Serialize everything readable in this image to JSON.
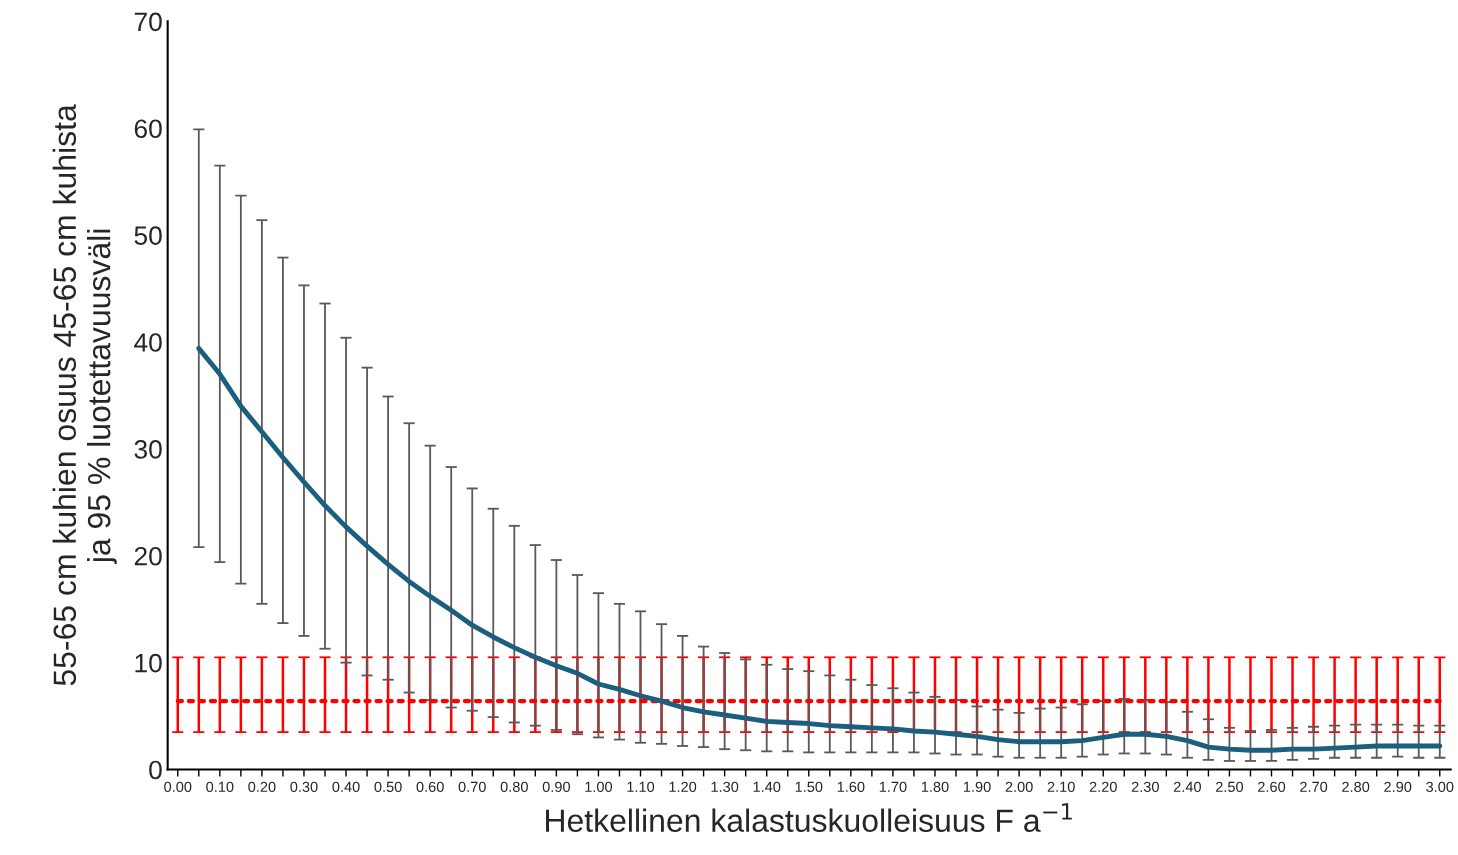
{
  "chart_data": {
    "type": "line",
    "xlabel": "Hetkellinen kalastuskuolleisuus F a$^{−1}$",
    "ylabel": "55-65 cm kuhien osuus 45-65 cm kuhista\nja 95 % luotettavuusväli",
    "xlim": [
      -0.024,
      3.026
    ],
    "ylim": [
      0,
      70
    ],
    "yticks": [
      0,
      10,
      20,
      30,
      40,
      50,
      60,
      70
    ],
    "xticks": [
      {
        "value": 0,
        "label": "0.00"
      },
      {
        "value": 0.05,
        "label": null
      },
      {
        "value": 0.1,
        "label": "0.10"
      },
      {
        "value": 0.15,
        "label": null
      },
      {
        "value": 0.2,
        "label": "0.20"
      },
      {
        "value": 0.25,
        "label": null
      },
      {
        "value": 0.3,
        "label": "0.30"
      },
      {
        "value": 0.35,
        "label": null
      },
      {
        "value": 0.4,
        "label": "0.40"
      },
      {
        "value": 0.45,
        "label": null
      },
      {
        "value": 0.5,
        "label": "0.50"
      },
      {
        "value": 0.55,
        "label": null
      },
      {
        "value": 0.6,
        "label": "0.60"
      },
      {
        "value": 0.65,
        "label": null
      },
      {
        "value": 0.7,
        "label": "0.70"
      },
      {
        "value": 0.75,
        "label": null
      },
      {
        "value": 0.8,
        "label": "0.80"
      },
      {
        "value": 0.85,
        "label": null
      },
      {
        "value": 0.9,
        "label": "0.90"
      },
      {
        "value": 0.95,
        "label": null
      },
      {
        "value": 1.0,
        "label": "1.00"
      },
      {
        "value": 1.05,
        "label": null
      },
      {
        "value": 1.1,
        "label": "1.10"
      },
      {
        "value": 1.15,
        "label": null
      },
      {
        "value": 1.2,
        "label": "1.20"
      },
      {
        "value": 1.25,
        "label": null
      },
      {
        "value": 1.3,
        "label": "1.30"
      },
      {
        "value": 1.35,
        "label": null
      },
      {
        "value": 1.4,
        "label": "1.40"
      },
      {
        "value": 1.45,
        "label": null
      },
      {
        "value": 1.5,
        "label": "1.50"
      },
      {
        "value": 1.55,
        "label": null
      },
      {
        "value": 1.6,
        "label": "1.60"
      },
      {
        "value": 1.65,
        "label": null
      },
      {
        "value": 1.7,
        "label": "1.70"
      },
      {
        "value": 1.75,
        "label": null
      },
      {
        "value": 1.8,
        "label": "1.80"
      },
      {
        "value": 1.85,
        "label": null
      },
      {
        "value": 1.9,
        "label": "1.90"
      },
      {
        "value": 1.95,
        "label": null
      },
      {
        "value": 2.0,
        "label": "2.00"
      },
      {
        "value": 2.05,
        "label": null
      },
      {
        "value": 2.1,
        "label": "2.10"
      },
      {
        "value": 2.15,
        "label": null
      },
      {
        "value": 2.2,
        "label": "2.20"
      },
      {
        "value": 2.25,
        "label": null
      },
      {
        "value": 2.3,
        "label": "2.30"
      },
      {
        "value": 2.35,
        "label": null
      },
      {
        "value": 2.4,
        "label": "2.40"
      },
      {
        "value": 2.45,
        "label": null
      },
      {
        "value": 2.5,
        "label": "2.50"
      },
      {
        "value": 2.55,
        "label": null
      },
      {
        "value": 2.6,
        "label": "2.60"
      },
      {
        "value": 2.65,
        "label": null
      },
      {
        "value": 2.7,
        "label": "2.70"
      },
      {
        "value": 2.75,
        "label": null
      },
      {
        "value": 2.8,
        "label": "2.80"
      },
      {
        "value": 2.85,
        "label": null
      },
      {
        "value": 2.9,
        "label": "2.90"
      },
      {
        "value": 2.95,
        "label": null
      },
      {
        "value": 3.0,
        "label": "3.00"
      }
    ],
    "grid": false,
    "marker": "none",
    "series": [
      {
        "color": "#ff0000",
        "line_style": "dotted",
        "x": [
          0,
          0.05,
          0.1,
          0.15,
          0.2,
          0.25,
          0.3,
          0.35,
          0.4,
          0.45,
          0.5,
          0.55,
          0.6,
          0.65,
          0.7,
          0.75,
          0.8,
          0.85,
          0.9,
          0.95,
          1.0,
          1.05,
          1.1,
          1.15,
          1.2,
          1.25,
          1.3,
          1.35,
          1.4,
          1.45,
          1.5,
          1.55,
          1.6,
          1.65,
          1.7,
          1.75,
          1.8,
          1.85,
          1.9,
          1.95,
          2.0,
          2.05,
          2.1,
          2.15,
          2.2,
          2.25,
          2.3,
          2.35,
          2.4,
          2.45,
          2.5,
          2.55,
          2.6,
          2.65,
          2.7,
          2.75,
          2.8,
          2.85,
          2.9,
          2.95,
          3.0
        ],
        "values": [
          6.4,
          6.4,
          6.4,
          6.4,
          6.4,
          6.4,
          6.4,
          6.4,
          6.4,
          6.4,
          6.4,
          6.4,
          6.4,
          6.4,
          6.4,
          6.4,
          6.4,
          6.4,
          6.4,
          6.4,
          6.4,
          6.4,
          6.4,
          6.4,
          6.4,
          6.4,
          6.4,
          6.4,
          6.4,
          6.4,
          6.4,
          6.4,
          6.4,
          6.4,
          6.4,
          6.4,
          6.4,
          6.4,
          6.4,
          6.4,
          6.4,
          6.4,
          6.4,
          6.4,
          6.4,
          6.4,
          6.4,
          6.4,
          6.4,
          6.4,
          6.4,
          6.4,
          6.4,
          6.4,
          6.4,
          6.4,
          6.4,
          6.4,
          6.4,
          6.4,
          6.4
        ],
        "errors": [
          [
            3.5,
            10.5
          ],
          [
            3.5,
            10.5
          ],
          [
            3.5,
            10.5
          ],
          [
            3.5,
            10.5
          ],
          [
            3.5,
            10.5
          ],
          [
            3.5,
            10.5
          ],
          [
            3.5,
            10.5
          ],
          [
            3.5,
            10.5
          ],
          [
            3.5,
            10.5
          ],
          [
            3.5,
            10.5
          ],
          [
            3.5,
            10.5
          ],
          [
            3.5,
            10.5
          ],
          [
            3.5,
            10.5
          ],
          [
            3.5,
            10.5
          ],
          [
            3.5,
            10.5
          ],
          [
            3.5,
            10.5
          ],
          [
            3.5,
            10.5
          ],
          [
            3.5,
            10.5
          ],
          [
            3.5,
            10.5
          ],
          [
            3.5,
            10.5
          ],
          [
            3.5,
            10.5
          ],
          [
            3.5,
            10.5
          ],
          [
            3.5,
            10.5
          ],
          [
            3.5,
            10.5
          ],
          [
            3.5,
            10.5
          ],
          [
            3.5,
            10.5
          ],
          [
            3.5,
            10.5
          ],
          [
            3.5,
            10.5
          ],
          [
            3.5,
            10.5
          ],
          [
            3.5,
            10.5
          ],
          [
            3.5,
            10.5
          ],
          [
            3.5,
            10.5
          ],
          [
            3.5,
            10.5
          ],
          [
            3.5,
            10.5
          ],
          [
            3.5,
            10.5
          ],
          [
            3.5,
            10.5
          ],
          [
            3.5,
            10.5
          ],
          [
            3.5,
            10.5
          ],
          [
            3.5,
            10.5
          ],
          [
            3.5,
            10.5
          ],
          [
            3.5,
            10.5
          ],
          [
            3.5,
            10.5
          ],
          [
            3.5,
            10.5
          ],
          [
            3.5,
            10.5
          ],
          [
            3.5,
            10.5
          ],
          [
            3.5,
            10.5
          ],
          [
            3.5,
            10.5
          ],
          [
            3.5,
            10.5
          ],
          [
            3.5,
            10.5
          ],
          [
            3.5,
            10.5
          ],
          [
            3.5,
            10.5
          ],
          [
            3.5,
            10.5
          ],
          [
            3.5,
            10.5
          ],
          [
            3.5,
            10.5
          ],
          [
            3.5,
            10.5
          ],
          [
            3.5,
            10.5
          ],
          [
            3.5,
            10.5
          ],
          [
            3.5,
            10.5
          ],
          [
            3.5,
            10.5
          ],
          [
            3.5,
            10.5
          ],
          [
            3.5,
            10.5
          ]
        ]
      },
      {
        "color": "#1b5e7d",
        "line_style": "solid",
        "x": [
          0.05,
          0.1,
          0.15,
          0.2,
          0.25,
          0.3,
          0.35,
          0.4,
          0.45,
          0.5,
          0.55,
          0.6,
          0.65,
          0.7,
          0.75,
          0.8,
          0.85,
          0.9,
          0.95,
          1.0,
          1.05,
          1.1,
          1.15,
          1.2,
          1.25,
          1.3,
          1.35,
          1.4,
          1.45,
          1.5,
          1.55,
          1.6,
          1.65,
          1.7,
          1.75,
          1.8,
          1.85,
          1.9,
          1.95,
          2.0,
          2.05,
          2.1,
          2.15,
          2.2,
          2.25,
          2.3,
          2.35,
          2.4,
          2.45,
          2.5,
          2.55,
          2.6,
          2.65,
          2.7,
          2.75,
          2.8,
          2.85,
          2.9,
          2.95,
          3.0
        ],
        "values": [
          39.4,
          37.0,
          34.0,
          31.6,
          29.2,
          26.9,
          24.7,
          22.7,
          20.9,
          19.2,
          17.6,
          16.2,
          14.9,
          13.5,
          12.4,
          11.4,
          10.5,
          9.7,
          9.0,
          8.0,
          7.5,
          6.9,
          6.4,
          5.8,
          5.4,
          5.1,
          4.8,
          4.5,
          4.4,
          4.3,
          4.1,
          4.0,
          3.9,
          3.8,
          3.6,
          3.5,
          3.3,
          3.1,
          2.8,
          2.6,
          2.6,
          2.6,
          2.7,
          3.0,
          3.3,
          3.3,
          3.1,
          2.7,
          2.1,
          1.9,
          1.8,
          1.8,
          1.9,
          1.9,
          2.0,
          2.1,
          2.2,
          2.2,
          2.2,
          2.2
        ],
        "errors": [
          [
            20.8,
            59.9
          ],
          [
            19.4,
            56.5
          ],
          [
            17.4,
            53.7
          ],
          [
            15.5,
            51.4
          ],
          [
            13.7,
            47.9
          ],
          [
            12.5,
            45.3
          ],
          [
            11.3,
            43.6
          ],
          [
            10.0,
            40.4
          ],
          [
            8.8,
            37.6
          ],
          [
            8.4,
            34.9
          ],
          [
            7.2,
            32.4
          ],
          [
            6.5,
            30.3
          ],
          [
            5.8,
            28.3
          ],
          [
            5.5,
            26.3
          ],
          [
            4.9,
            24.4
          ],
          [
            4.4,
            22.8
          ],
          [
            4.1,
            21.0
          ],
          [
            3.7,
            19.6
          ],
          [
            3.3,
            18.2
          ],
          [
            3.0,
            16.5
          ],
          [
            2.8,
            15.5
          ],
          [
            2.5,
            14.8
          ],
          [
            2.4,
            13.6
          ],
          [
            2.2,
            12.5
          ],
          [
            2.1,
            11.5
          ],
          [
            1.9,
            10.9
          ],
          [
            1.8,
            10.3
          ],
          [
            1.7,
            9.8
          ],
          [
            1.7,
            9.4
          ],
          [
            1.6,
            9.2
          ],
          [
            1.6,
            8.8
          ],
          [
            1.6,
            8.4
          ],
          [
            1.6,
            7.9
          ],
          [
            1.6,
            7.6
          ],
          [
            1.6,
            7.2
          ],
          [
            1.5,
            6.8
          ],
          [
            1.4,
            6.5
          ],
          [
            1.4,
            5.9
          ],
          [
            1.2,
            5.6
          ],
          [
            1.1,
            5.3
          ],
          [
            1.1,
            5.7
          ],
          [
            1.1,
            5.8
          ],
          [
            1.2,
            6.1
          ],
          [
            1.4,
            6.4
          ],
          [
            1.5,
            6.6
          ],
          [
            1.5,
            6.5
          ],
          [
            1.4,
            6.3
          ],
          [
            1.1,
            5.4
          ],
          [
            0.9,
            4.7
          ],
          [
            0.8,
            3.9
          ],
          [
            0.8,
            3.6
          ],
          [
            0.8,
            3.7
          ],
          [
            0.9,
            3.9
          ],
          [
            1.0,
            4.0
          ],
          [
            1.1,
            4.1
          ],
          [
            1.1,
            4.2
          ],
          [
            1.1,
            4.2
          ],
          [
            1.2,
            4.2
          ],
          [
            1.1,
            4.1
          ],
          [
            1.1,
            4.1
          ]
        ]
      }
    ]
  }
}
